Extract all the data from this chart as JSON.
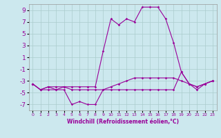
{
  "title": "",
  "xlabel": "Windchill (Refroidissement éolien,°C)",
  "ylabel": "",
  "background_color": "#cce8ee",
  "grid_color": "#aacccc",
  "line_color": "#990099",
  "xlim": [
    -0.5,
    23.5
  ],
  "ylim": [
    -8,
    10
  ],
  "yticks": [
    -7,
    -5,
    -3,
    -1,
    1,
    3,
    5,
    7,
    9
  ],
  "xticks": [
    0,
    1,
    2,
    3,
    4,
    5,
    6,
    7,
    8,
    9,
    10,
    11,
    12,
    13,
    14,
    15,
    16,
    17,
    18,
    19,
    20,
    21,
    22,
    23
  ],
  "line1_x": [
    0,
    1,
    2,
    3,
    4,
    5,
    6,
    7,
    8,
    9,
    10,
    11,
    12,
    13,
    14,
    15,
    16,
    17,
    18,
    19,
    20,
    21,
    22,
    23
  ],
  "line1_y": [
    -3.5,
    -4.5,
    -4.5,
    -4.5,
    -4.5,
    -7.0,
    -6.5,
    -7.0,
    -7.0,
    -4.5,
    -4.5,
    -4.5,
    -4.5,
    -4.5,
    -4.5,
    -4.5,
    -4.5,
    -4.5,
    -4.5,
    -1.5,
    -3.5,
    -4.5,
    -3.5,
    -3.0
  ],
  "line2_x": [
    0,
    1,
    2,
    3,
    4,
    5,
    6,
    7,
    8,
    9,
    10,
    11,
    12,
    13,
    14,
    15,
    16,
    17,
    18,
    19,
    20,
    21,
    22,
    23
  ],
  "line2_y": [
    -3.5,
    -4.5,
    -4.0,
    -4.5,
    -4.0,
    -4.5,
    -4.5,
    -4.5,
    -4.5,
    -4.5,
    -4.0,
    -3.5,
    -3.0,
    -2.5,
    -2.5,
    -2.5,
    -2.5,
    -2.5,
    -2.5,
    -3.0,
    -3.5,
    -4.0,
    -3.5,
    -3.0
  ],
  "line3_x": [
    0,
    1,
    2,
    3,
    4,
    5,
    6,
    7,
    8,
    9,
    10,
    11,
    12,
    13,
    14,
    15,
    16,
    17,
    18,
    19,
    20,
    21,
    22,
    23
  ],
  "line3_y": [
    -3.5,
    -4.5,
    -4.0,
    -4.0,
    -4.0,
    -4.0,
    -4.0,
    -4.0,
    -4.0,
    2.0,
    7.5,
    6.5,
    7.5,
    7.0,
    9.5,
    9.5,
    9.5,
    7.5,
    3.5,
    -1.5,
    -3.5,
    -4.0,
    -3.5,
    -3.0
  ],
  "xlabel_fontsize": 5.5,
  "ytick_fontsize": 6.5,
  "xtick_fontsize": 4.5,
  "linewidth": 0.8,
  "markersize": 1.8
}
